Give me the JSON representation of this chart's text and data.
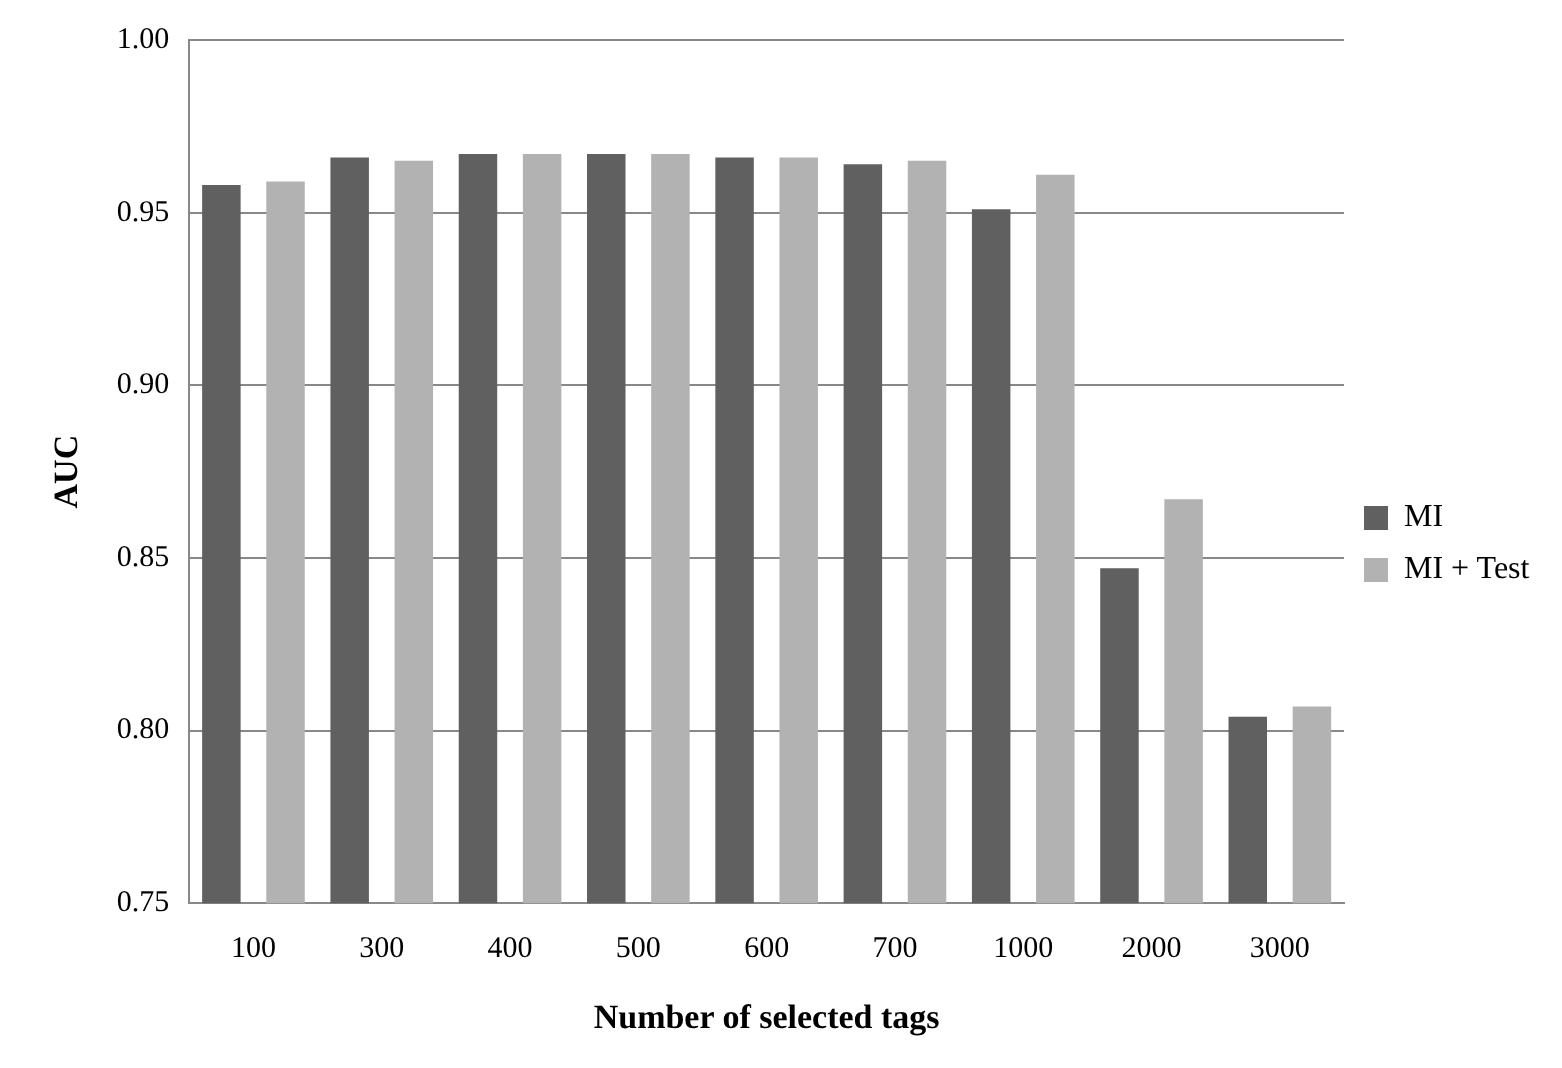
{
  "chart_data": {
    "type": "bar",
    "xlabel": "Number of selected tags",
    "ylabel": "AUC",
    "categories": [
      "100",
      "300",
      "400",
      "500",
      "600",
      "700",
      "1000",
      "2000",
      "3000"
    ],
    "series": [
      {
        "name": "MI",
        "color": "#606060",
        "values": [
          0.958,
          0.966,
          0.967,
          0.967,
          0.966,
          0.964,
          0.951,
          0.847,
          0.804
        ]
      },
      {
        "name": "MI + Test",
        "color": "#b2b2b2",
        "values": [
          0.959,
          0.965,
          0.967,
          0.967,
          0.966,
          0.965,
          0.961,
          0.867,
          0.807
        ]
      }
    ],
    "ylim": [
      0.75,
      1.0
    ],
    "yticks": [
      {
        "value": 0.75,
        "label": "0.75"
      },
      {
        "value": 0.8,
        "label": "0.80"
      },
      {
        "value": 0.85,
        "label": "0.85"
      },
      {
        "value": 0.9,
        "label": "0.90"
      },
      {
        "value": 0.95,
        "label": "0.95"
      },
      {
        "value": 1.0,
        "label": "1.00"
      }
    ],
    "grid": "y",
    "legend": "right"
  }
}
